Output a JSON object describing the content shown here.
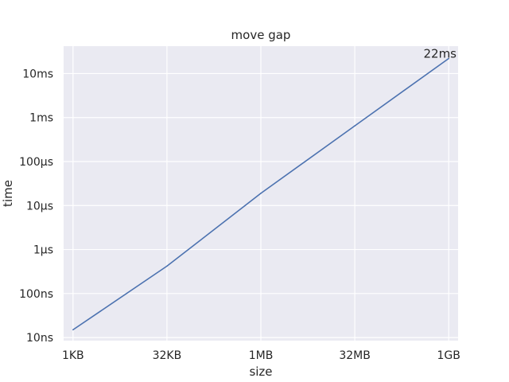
{
  "chart_data": {
    "type": "line",
    "title": "move gap",
    "xlabel": "size",
    "ylabel": "time",
    "x_scale": "log2",
    "y_scale": "log10",
    "grid": true,
    "xticks": [
      {
        "value_bytes": 1024,
        "label": "1KB"
      },
      {
        "value_bytes": 32768,
        "label": "32KB"
      },
      {
        "value_bytes": 1048576,
        "label": "1MB"
      },
      {
        "value_bytes": 33554432,
        "label": "32MB"
      },
      {
        "value_bytes": 1073741824,
        "label": "1GB"
      }
    ],
    "yticks": [
      {
        "value_seconds": 1e-08,
        "label": "10ns"
      },
      {
        "value_seconds": 1e-07,
        "label": "100ns"
      },
      {
        "value_seconds": 1e-06,
        "label": "1µs"
      },
      {
        "value_seconds": 1e-05,
        "label": "10µs"
      },
      {
        "value_seconds": 0.0001,
        "label": "100µs"
      },
      {
        "value_seconds": 0.001,
        "label": "1ms"
      },
      {
        "value_seconds": 0.01,
        "label": "10ms"
      }
    ],
    "xlim_bytes": [
      724,
      1518500250
    ],
    "ylim_seconds": [
      8.5e-09,
      0.042
    ],
    "series": [
      {
        "color": "#4c72b0",
        "points": [
          {
            "size_bytes": 1024,
            "time_seconds": 1.5e-08
          },
          {
            "size_bytes": 32768,
            "time_seconds": 4.2e-07
          },
          {
            "size_bytes": 1048576,
            "time_seconds": 1.9e-05
          },
          {
            "size_bytes": 33554432,
            "time_seconds": 0.00065
          },
          {
            "size_bytes": 1073741824,
            "time_seconds": 0.022
          }
        ]
      }
    ],
    "annotations": [
      {
        "text": "22ms",
        "size_bytes": 1073741824,
        "time_seconds": 0.022
      }
    ],
    "colors": {
      "plot_background": "#eaeaf2",
      "grid": "#ffffff",
      "line": "#4c72b0"
    }
  }
}
